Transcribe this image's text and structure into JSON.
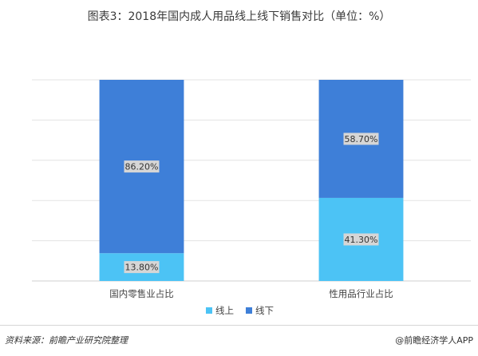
{
  "title": "图表3：2018年国内成人用品线上线下销售对比（单位：%）",
  "source": "资料来源：前瞻产业研究院整理",
  "credit": "@前瞻经济学人APP",
  "colors": {
    "online": "#4cc3f5",
    "offline": "#3e7fd8",
    "label_bg": "#d6d6d6",
    "grid": "#e3e3e3"
  },
  "chart_data": {
    "type": "bar",
    "stacked": true,
    "percent_stacked": true,
    "categories": [
      "国内零售业占比",
      "性用品行业占比"
    ],
    "series": [
      {
        "name": "线上",
        "values": [
          13.8,
          41.3
        ],
        "labels": [
          "13.80%",
          "41.30%"
        ],
        "color": "#4cc3f5"
      },
      {
        "name": "线下",
        "values": [
          86.2,
          58.7
        ],
        "labels": [
          "86.20%",
          "58.70%"
        ],
        "color": "#3e7fd8"
      }
    ],
    "ylim": [
      0,
      100
    ],
    "grid": true,
    "legend_position": "bottom"
  }
}
